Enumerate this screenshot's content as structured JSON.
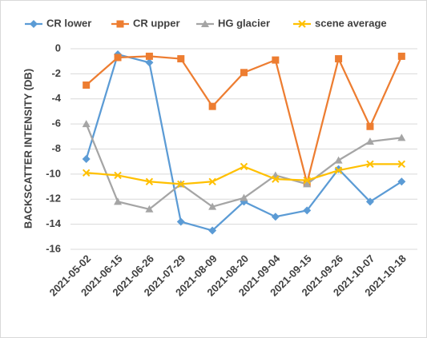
{
  "chart_data": {
    "type": "line",
    "y_label": "BACKSCATTER INTENSITY (DB)",
    "categories": [
      "2021-05-02",
      "2021-06-15",
      "2021-06-26",
      "2021-07-29",
      "2021-08-09",
      "2021-08-20",
      "2021-09-04",
      "2021-09-15",
      "2021-09-26",
      "2021-10-07",
      "2021-10-18"
    ],
    "series": [
      {
        "name": "CR lower",
        "color": "#5b9bd5",
        "marker": "diamond",
        "values": [
          -8.8,
          -0.45,
          -1.1,
          -13.8,
          -14.5,
          -12.2,
          -13.4,
          -12.9,
          -9.6,
          -12.2,
          -10.6
        ]
      },
      {
        "name": "CR upper",
        "color": "#ed7d31",
        "marker": "square",
        "values": [
          -2.9,
          -0.7,
          -0.6,
          -0.8,
          -4.6,
          -1.9,
          -0.9,
          -10.7,
          -0.8,
          -6.2,
          -0.6
        ]
      },
      {
        "name": "HG glacier",
        "color": "#a5a5a5",
        "marker": "triangle",
        "values": [
          -6.0,
          -12.2,
          -12.8,
          -10.8,
          -12.6,
          -11.9,
          -10.1,
          -10.8,
          -8.9,
          -7.4,
          -7.1
        ]
      },
      {
        "name": "scene average",
        "color": "#ffc000",
        "marker": "x",
        "values": [
          -9.9,
          -10.1,
          -10.6,
          -10.8,
          -10.6,
          -9.4,
          -10.4,
          -10.5,
          -9.7,
          -9.2,
          -9.2
        ]
      }
    ],
    "ylim": [
      -16,
      0
    ],
    "yticks": [
      0,
      -2,
      -4,
      -6,
      -8,
      -10,
      -12,
      -14,
      -16
    ],
    "grid": true,
    "legend": "top"
  }
}
